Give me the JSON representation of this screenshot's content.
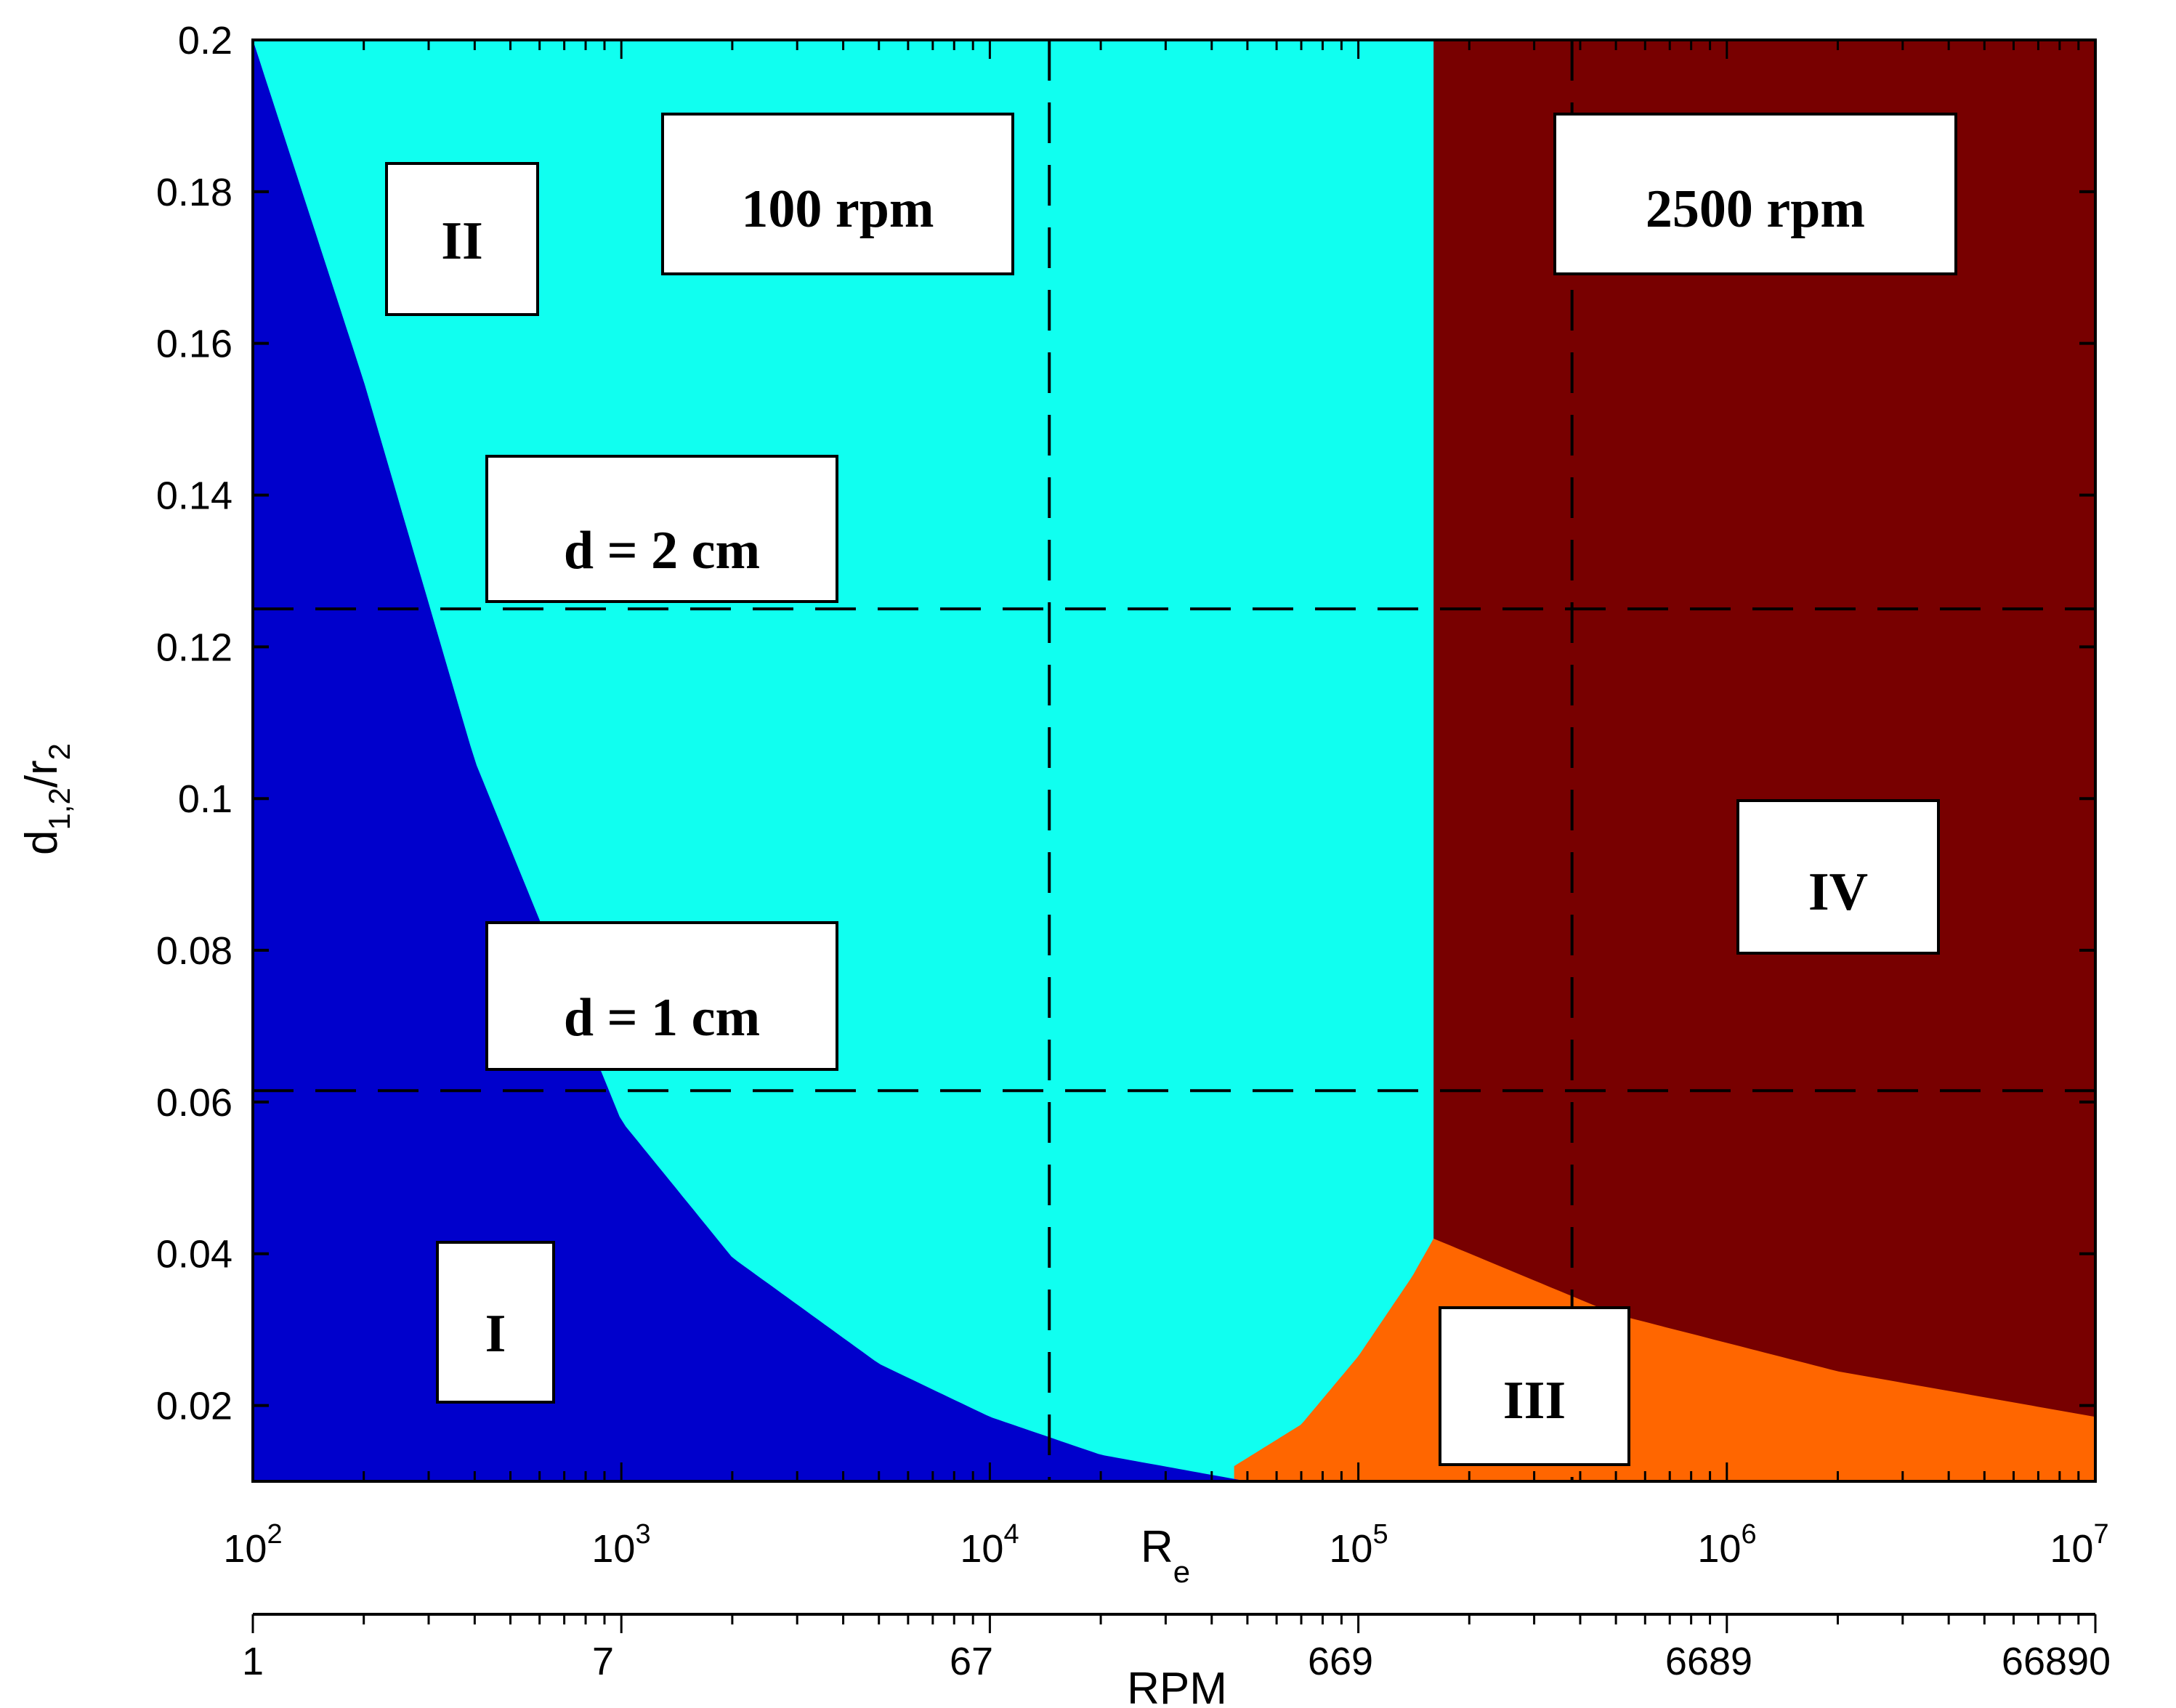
{
  "chart_data": {
    "type": "heatmap",
    "title": "",
    "x_axis": {
      "scale": "log",
      "label_main": "R",
      "label_sub": "e",
      "range": [
        100,
        10000000
      ],
      "ticks": [
        {
          "value": 100,
          "base": "10",
          "exp": "2"
        },
        {
          "value": 1000,
          "base": "10",
          "exp": "3"
        },
        {
          "value": 10000,
          "base": "10",
          "exp": "4"
        },
        {
          "value": 100000,
          "base": "10",
          "exp": "5"
        },
        {
          "value": 1000000,
          "base": "10",
          "exp": "6"
        },
        {
          "value": 10000000,
          "base": "10",
          "exp": "7"
        }
      ]
    },
    "x2_axis": {
      "label": "RPM",
      "ticks": [
        "1",
        "7",
        "67",
        "669",
        "6689",
        "66890"
      ]
    },
    "y_axis": {
      "label_main": "d",
      "label_sub1": "1,2",
      "label_mid": "/r",
      "label_sub2": "2",
      "range": [
        0.01,
        0.2
      ],
      "ticks": [
        "0.02",
        "0.04",
        "0.06",
        "0.08",
        "0.1",
        "0.12",
        "0.14",
        "0.16",
        "0.18",
        "0.2"
      ],
      "tick_values": [
        0.02,
        0.04,
        0.06,
        0.08,
        0.1,
        0.12,
        0.14,
        0.16,
        0.18,
        0.2
      ]
    },
    "regions": [
      {
        "name": "I",
        "color": "#0000cc"
      },
      {
        "name": "II",
        "color": "#10fff0"
      },
      {
        "name": "III",
        "color": "#ff6600"
      },
      {
        "name": "IV",
        "color": "#780000"
      }
    ],
    "boundary_I_II": {
      "re": [
        100,
        200,
        400,
        1000,
        2000,
        5000,
        10000,
        20000,
        50000
      ],
      "d": [
        0.2,
        0.155,
        0.105,
        0.0575,
        0.0395,
        0.0255,
        0.0185,
        0.0135,
        0.01
      ]
    },
    "boundary_II_III": {
      "re": [
        46000,
        70000,
        100000,
        140000,
        160000
      ],
      "d": [
        0.012,
        0.0175,
        0.0265,
        0.037,
        0.042
      ]
    },
    "boundary_III_IV": {
      "re": [
        160000,
        500000,
        2000000,
        10000000
      ],
      "d": [
        0.042,
        0.032,
        0.0245,
        0.0185
      ]
    },
    "re_II_IV": 160000,
    "reference_lines": {
      "vertical_re": [
        14500,
        380000
      ],
      "horizontal_d": [
        0.125,
        0.0615
      ]
    },
    "annotations": {
      "rpm100": "100 rpm",
      "rpm2500": "2500 rpm",
      "d2": "d = 2 cm",
      "d1": "d = 1 cm",
      "I": "I",
      "II": "II",
      "III": "III",
      "IV": "IV"
    }
  }
}
